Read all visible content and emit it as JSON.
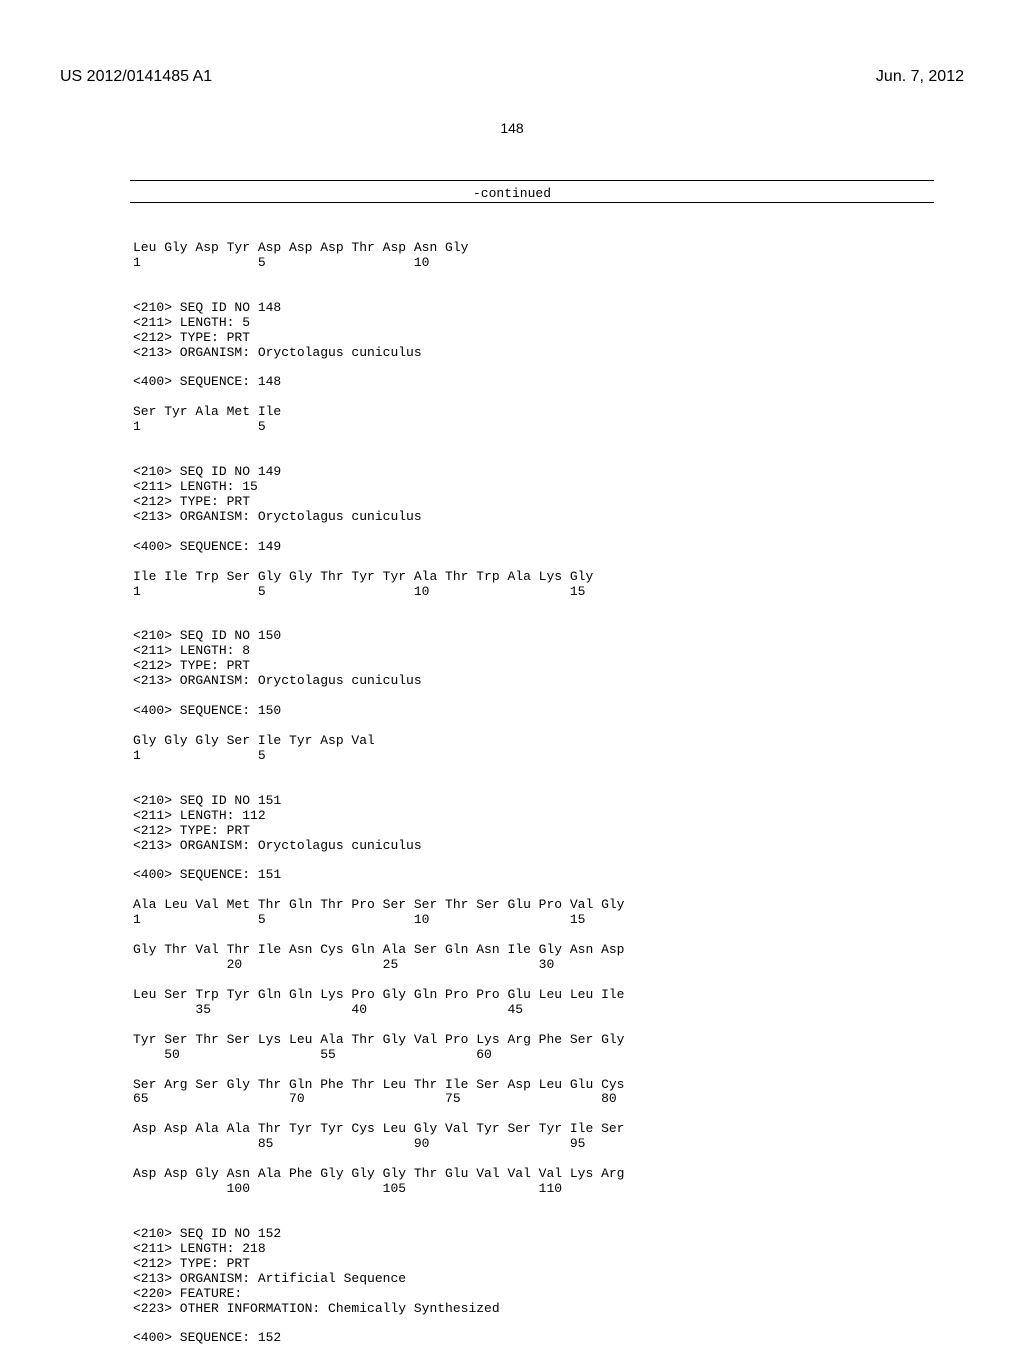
{
  "header": {
    "pub_number": "US 2012/0141485 A1",
    "pub_date": "Jun. 7, 2012"
  },
  "page_number": "148",
  "continued_label": "-continued",
  "sequence_text": "Leu Gly Asp Tyr Asp Asp Asp Thr Asp Asn Gly\n1               5                   10\n\n\n<210> SEQ ID NO 148\n<211> LENGTH: 5\n<212> TYPE: PRT\n<213> ORGANISM: Oryctolagus cuniculus\n\n<400> SEQUENCE: 148\n\nSer Tyr Ala Met Ile\n1               5\n\n\n<210> SEQ ID NO 149\n<211> LENGTH: 15\n<212> TYPE: PRT\n<213> ORGANISM: Oryctolagus cuniculus\n\n<400> SEQUENCE: 149\n\nIle Ile Trp Ser Gly Gly Thr Tyr Tyr Ala Thr Trp Ala Lys Gly\n1               5                   10                  15\n\n\n<210> SEQ ID NO 150\n<211> LENGTH: 8\n<212> TYPE: PRT\n<213> ORGANISM: Oryctolagus cuniculus\n\n<400> SEQUENCE: 150\n\nGly Gly Gly Ser Ile Tyr Asp Val\n1               5\n\n\n<210> SEQ ID NO 151\n<211> LENGTH: 112\n<212> TYPE: PRT\n<213> ORGANISM: Oryctolagus cuniculus\n\n<400> SEQUENCE: 151\n\nAla Leu Val Met Thr Gln Thr Pro Ser Ser Thr Ser Glu Pro Val Gly\n1               5                   10                  15\n\nGly Thr Val Thr Ile Asn Cys Gln Ala Ser Gln Asn Ile Gly Asn Asp\n            20                  25                  30\n\nLeu Ser Trp Tyr Gln Gln Lys Pro Gly Gln Pro Pro Glu Leu Leu Ile\n        35                  40                  45\n\nTyr Ser Thr Ser Lys Leu Ala Thr Gly Val Pro Lys Arg Phe Ser Gly\n    50                  55                  60\n\nSer Arg Ser Gly Thr Gln Phe Thr Leu Thr Ile Ser Asp Leu Glu Cys\n65                  70                  75                  80\n\nAsp Asp Ala Ala Thr Tyr Tyr Cys Leu Gly Val Tyr Ser Tyr Ile Ser\n                85                  90                  95\n\nAsp Asp Gly Asn Ala Phe Gly Gly Gly Thr Glu Val Val Val Lys Arg\n            100                 105                 110\n\n\n<210> SEQ ID NO 152\n<211> LENGTH: 218\n<212> TYPE: PRT\n<213> ORGANISM: Artificial Sequence\n<220> FEATURE:\n<223> OTHER INFORMATION: Chemically Synthesized\n\n<400> SEQUENCE: 152"
}
